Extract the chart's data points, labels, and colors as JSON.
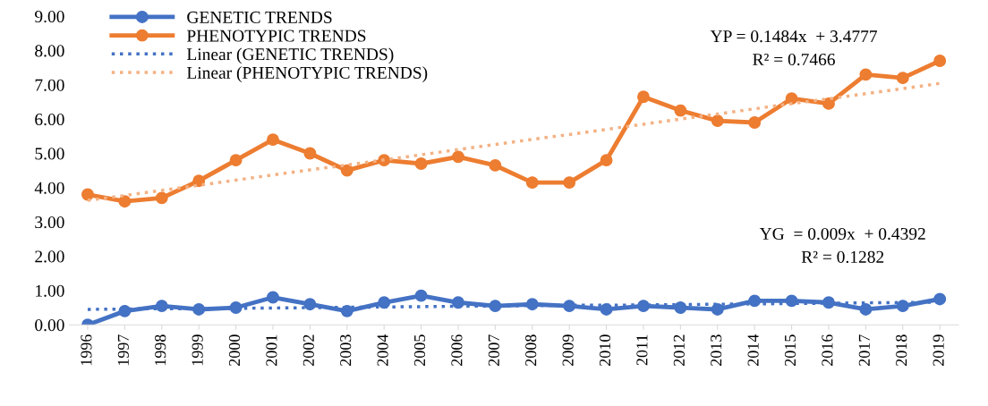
{
  "chart_data": {
    "type": "line",
    "categories": [
      "1996",
      "1997",
      "1998",
      "1999",
      "2000",
      "2001",
      "2002",
      "2003",
      "2004",
      "2005",
      "2006",
      "2007",
      "2008",
      "2009",
      "2010",
      "2011",
      "2012",
      "2013",
      "2014",
      "2015",
      "2016",
      "2017",
      "2018",
      "2019"
    ],
    "series": [
      {
        "name": "GENETIC TRENDS",
        "color": "#4472c4",
        "marker": "circle",
        "line_style": "solid",
        "values": [
          0.0,
          0.4,
          0.55,
          0.45,
          0.5,
          0.8,
          0.6,
          0.4,
          0.65,
          0.85,
          0.65,
          0.55,
          0.6,
          0.55,
          0.45,
          0.55,
          0.5,
          0.45,
          0.7,
          0.7,
          0.65,
          0.45,
          0.55,
          0.75
        ]
      },
      {
        "name": "PHENOTYPIC TRENDS",
        "color": "#ed7d31",
        "marker": "circle",
        "line_style": "solid",
        "values": [
          3.8,
          3.6,
          3.7,
          4.2,
          4.8,
          5.4,
          5.0,
          4.5,
          4.8,
          4.7,
          4.9,
          4.65,
          4.15,
          4.15,
          4.8,
          6.65,
          6.25,
          5.95,
          5.9,
          6.6,
          6.45,
          7.3,
          7.2,
          7.7
        ]
      },
      {
        "name": "Linear (GENETIC TRENDS)",
        "type": "line",
        "color": "#4472c4",
        "marker": "none",
        "line_style": "dotted",
        "values": [
          0.45,
          0.46,
          0.47,
          0.47,
          0.48,
          0.49,
          0.5,
          0.51,
          0.52,
          0.53,
          0.54,
          0.55,
          0.56,
          0.57,
          0.57,
          0.58,
          0.59,
          0.6,
          0.61,
          0.62,
          0.63,
          0.64,
          0.65,
          0.66
        ]
      },
      {
        "name": "Linear (PHENOTYPIC TRENDS)",
        "type": "line",
        "color": "#f4b183",
        "marker": "none",
        "line_style": "dotted",
        "values": [
          3.63,
          3.77,
          3.92,
          4.07,
          4.22,
          4.37,
          4.52,
          4.66,
          4.81,
          4.96,
          5.11,
          5.26,
          5.41,
          5.55,
          5.7,
          5.85,
          6.0,
          6.15,
          6.3,
          6.45,
          6.59,
          6.74,
          6.89,
          7.04
        ]
      }
    ],
    "ylim": [
      0,
      9
    ],
    "yticks": [
      {
        "value": 0,
        "label": "0.00"
      },
      {
        "value": 1,
        "label": "1.00"
      },
      {
        "value": 2,
        "label": "2.00"
      },
      {
        "value": 3,
        "label": "3.00"
      },
      {
        "value": 4,
        "label": "4.00"
      },
      {
        "value": 5,
        "label": "5.00"
      },
      {
        "value": 6,
        "label": "6.00"
      },
      {
        "value": 7,
        "label": "7.00"
      },
      {
        "value": 8,
        "label": "8.00"
      },
      {
        "value": 9,
        "label": "9.00"
      }
    ],
    "grid": false,
    "legend": "top left",
    "annotations": [
      "YP = 0.1484x  + 3.4777",
      "R² = 0.7466",
      "YG  = 0.009x  + 0.4392",
      "R² = 0.1282"
    ]
  }
}
